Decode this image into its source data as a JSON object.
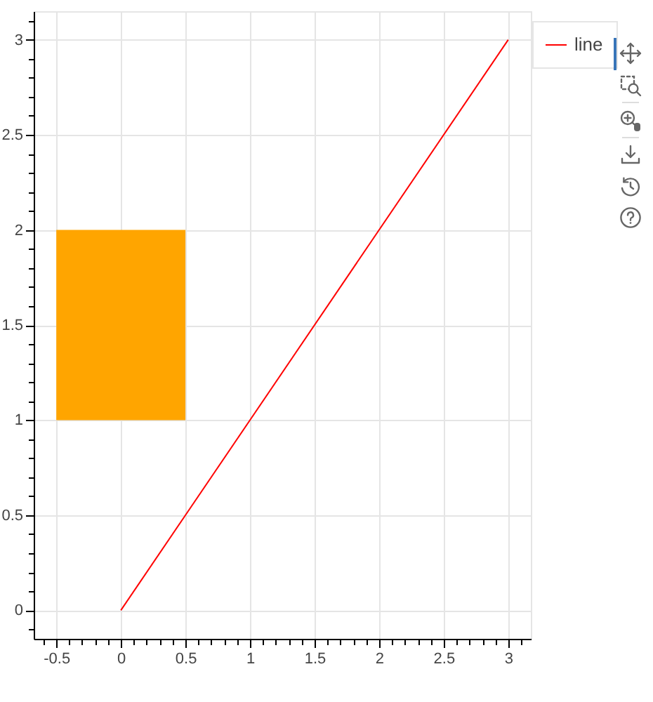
{
  "chart_data": {
    "type": "bar",
    "x": [
      0
    ],
    "values": [
      1
    ],
    "base": [
      1
    ],
    "color": "#ffa500",
    "series": [
      {
        "type": "line",
        "name": "line",
        "color": "#ff0000",
        "x": [
          0,
          3
        ],
        "values": [
          0,
          3
        ]
      }
    ],
    "xlim": [
      -0.675,
      3.175
    ],
    "ylim": [
      -0.15,
      3.15
    ],
    "xticks": [
      {
        "value": -0.6,
        "label": null
      },
      -0.5,
      {
        "value": -0.4,
        "label": null
      },
      {
        "value": -0.3,
        "label": null
      },
      {
        "value": -0.2,
        "label": null
      },
      {
        "value": -0.1,
        "label": null
      },
      0,
      {
        "value": 0.1,
        "label": null
      },
      {
        "value": 0.2,
        "label": null
      },
      {
        "value": 0.3,
        "label": null
      },
      {
        "value": 0.4,
        "label": null
      },
      0.5,
      {
        "value": 0.6,
        "label": null
      },
      {
        "value": 0.7,
        "label": null
      },
      {
        "value": 0.8,
        "label": null
      },
      {
        "value": 0.9,
        "label": null
      },
      1,
      {
        "value": 1.1,
        "label": null
      },
      {
        "value": 1.2,
        "label": null
      },
      {
        "value": 1.3,
        "label": null
      },
      {
        "value": 1.4,
        "label": null
      },
      1.5,
      {
        "value": 1.6,
        "label": null
      },
      {
        "value": 1.7,
        "label": null
      },
      {
        "value": 1.8,
        "label": null
      },
      {
        "value": 1.9,
        "label": null
      },
      2,
      {
        "value": 2.1,
        "label": null
      },
      {
        "value": 2.2,
        "label": null
      },
      {
        "value": 2.3,
        "label": null
      },
      {
        "value": 2.4,
        "label": null
      },
      2.5,
      {
        "value": 2.6,
        "label": null
      },
      {
        "value": 2.7,
        "label": null
      },
      {
        "value": 2.8,
        "label": null
      },
      {
        "value": 2.9,
        "label": null
      },
      3,
      {
        "value": 3.1,
        "label": null
      }
    ],
    "yticks": [
      {
        "value": -0.1,
        "label": null
      },
      0,
      {
        "value": 0.1,
        "label": null
      },
      {
        "value": 0.2,
        "label": null
      },
      {
        "value": 0.3,
        "label": null
      },
      {
        "value": 0.4,
        "label": null
      },
      0.5,
      {
        "value": 0.6,
        "label": null
      },
      {
        "value": 0.7,
        "label": null
      },
      {
        "value": 0.8,
        "label": null
      },
      {
        "value": 0.9,
        "label": null
      },
      1,
      {
        "value": 1.1,
        "label": null
      },
      {
        "value": 1.2,
        "label": null
      },
      {
        "value": 1.3,
        "label": null
      },
      {
        "value": 1.4,
        "label": null
      },
      1.5,
      {
        "value": 1.6,
        "label": null
      },
      {
        "value": 1.7,
        "label": null
      },
      {
        "value": 1.8,
        "label": null
      },
      {
        "value": 1.9,
        "label": null
      },
      2,
      {
        "value": 2.1,
        "label": null
      },
      {
        "value": 2.2,
        "label": null
      },
      {
        "value": 2.3,
        "label": null
      },
      {
        "value": 2.4,
        "label": null
      },
      2.5,
      {
        "value": 2.6,
        "label": null
      },
      {
        "value": 2.7,
        "label": null
      },
      {
        "value": 2.8,
        "label": null
      },
      {
        "value": 2.9,
        "label": null
      },
      3,
      {
        "value": 3.1,
        "label": null
      }
    ],
    "grid": true,
    "legend": "top right"
  }
}
